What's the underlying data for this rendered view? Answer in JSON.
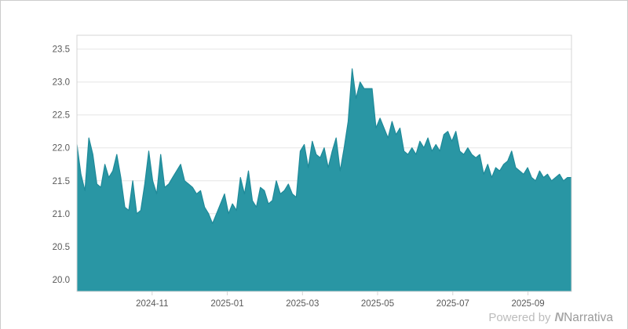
{
  "branding": {
    "powered_by": "Powered by",
    "logo_letter": "N",
    "logo_name": "Narrativa"
  },
  "colors": {
    "area": "#2996a4",
    "line": "#1f8a99",
    "grid": "#e6e6e6",
    "axis_border": "#d4d4d4",
    "axis_text": "#595959",
    "outer_border": "#cccccc"
  },
  "chart_data": {
    "type": "area",
    "title": "",
    "xlabel": "",
    "ylabel": "",
    "x_range": [
      "2024-09",
      "2025-10"
    ],
    "ylim": [
      19.82,
      23.71
    ],
    "y_ticks": [
      20.0,
      20.5,
      21.0,
      21.5,
      22.0,
      22.5,
      23.0,
      23.5
    ],
    "x_ticks": [
      {
        "label": "2024-11",
        "f": 0.152
      },
      {
        "label": "2025-01",
        "f": 0.304
      },
      {
        "label": "2025-03",
        "f": 0.456
      },
      {
        "label": "2025-05",
        "f": 0.608
      },
      {
        "label": "2025-07",
        "f": 0.76
      },
      {
        "label": "2025-09",
        "f": 0.912
      }
    ],
    "legend": "none",
    "grid": "horizontal",
    "values": [
      22.05,
      21.6,
      21.35,
      22.15,
      21.9,
      21.45,
      21.4,
      21.75,
      21.55,
      21.65,
      21.9,
      21.55,
      21.1,
      21.05,
      21.5,
      21.0,
      21.05,
      21.45,
      21.95,
      21.5,
      21.3,
      21.9,
      21.4,
      21.45,
      21.55,
      21.65,
      21.75,
      21.5,
      21.45,
      21.4,
      21.3,
      21.35,
      21.1,
      21.0,
      20.85,
      21.0,
      21.15,
      21.3,
      21.0,
      21.15,
      21.05,
      21.55,
      21.3,
      21.65,
      21.2,
      21.1,
      21.4,
      21.35,
      21.15,
      21.2,
      21.5,
      21.3,
      21.35,
      21.45,
      21.3,
      21.25,
      21.95,
      22.05,
      21.7,
      22.1,
      21.9,
      21.85,
      22.0,
      21.7,
      21.95,
      22.15,
      21.65,
      22.0,
      22.4,
      23.2,
      22.75,
      23.0,
      22.9,
      22.9,
      22.9,
      22.3,
      22.45,
      22.3,
      22.15,
      22.4,
      22.2,
      22.3,
      21.95,
      21.9,
      22.0,
      21.9,
      22.1,
      22.0,
      22.15,
      21.95,
      22.05,
      21.95,
      22.2,
      22.25,
      22.1,
      22.25,
      21.95,
      21.9,
      22.0,
      21.9,
      21.85,
      21.9,
      21.6,
      21.75,
      21.55,
      21.7,
      21.65,
      21.75,
      21.8,
      21.95,
      21.7,
      21.65,
      21.6,
      21.7,
      21.55,
      21.5,
      21.65,
      21.55,
      21.6,
      21.5,
      21.55,
      21.6,
      21.5,
      21.55,
      21.55
    ]
  }
}
